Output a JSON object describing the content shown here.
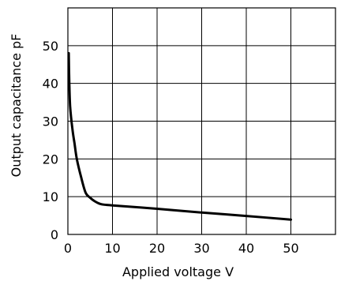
{
  "chart_data": {
    "type": "line",
    "xlabel": "Applied voltage  V",
    "ylabel": "Output  capacitance  pF",
    "xlim": [
      0,
      60
    ],
    "ylim": [
      0,
      60
    ],
    "grid": true,
    "x_ticks": [
      "0",
      "10",
      "20",
      "30",
      "40",
      "50"
    ],
    "y_ticks": [
      "0",
      "10",
      "20",
      "30",
      "40",
      "50"
    ],
    "series": [
      {
        "x": [
          0.2,
          0.3,
          0.5,
          1.0,
          1.5,
          2.0,
          3.0,
          4.0,
          5.0,
          6.0,
          7.0,
          8.0,
          10.0,
          20.0,
          30.0,
          40.0,
          50.0
        ],
        "y": [
          48,
          41,
          34,
          28,
          24,
          20,
          15,
          11,
          9.7,
          8.8,
          8.2,
          7.9,
          7.7,
          6.8,
          5.8,
          4.9,
          3.9
        ]
      }
    ]
  }
}
